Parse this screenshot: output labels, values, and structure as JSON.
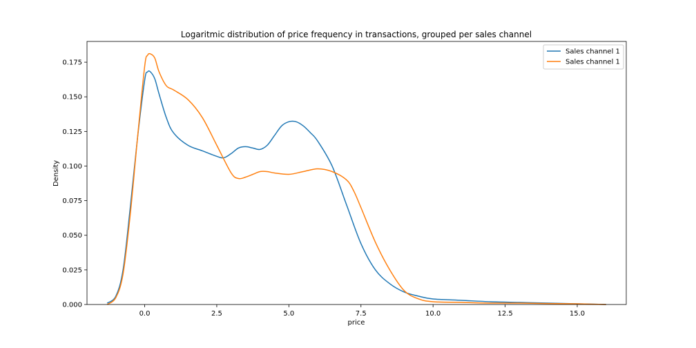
{
  "chart_data": {
    "type": "line",
    "title": "Logaritmic distribution of price frequency in transactions, grouped per sales channel",
    "xlabel": "price",
    "ylabel": "Density",
    "xlim": [
      -2.0,
      16.7
    ],
    "ylim": [
      0.0,
      0.19
    ],
    "xticks": [
      0.0,
      2.5,
      5.0,
      7.5,
      10.0,
      12.5,
      15.0
    ],
    "xtick_labels": [
      "0.0",
      "2.5",
      "5.0",
      "7.5",
      "10.0",
      "12.5",
      "15.0"
    ],
    "yticks": [
      0.0,
      0.025,
      0.05,
      0.075,
      0.1,
      0.125,
      0.15,
      0.175
    ],
    "ytick_labels": [
      "0.000",
      "0.025",
      "0.050",
      "0.075",
      "0.100",
      "0.125",
      "0.150",
      "0.175"
    ],
    "grid": false,
    "legend_position": "top-right",
    "series": [
      {
        "name": "Sales channel 1",
        "color": "#1f77b4",
        "x": [
          -1.3,
          -1.0,
          -0.75,
          -0.5,
          -0.25,
          0.0,
          0.1,
          0.2,
          0.35,
          0.5,
          0.75,
          1.0,
          1.5,
          2.0,
          2.5,
          2.75,
          3.0,
          3.25,
          3.5,
          3.75,
          4.0,
          4.25,
          4.5,
          4.75,
          5.0,
          5.25,
          5.5,
          5.75,
          6.0,
          6.5,
          7.0,
          7.5,
          8.0,
          8.5,
          9.0,
          9.5,
          10.0,
          11.0,
          12.0,
          13.0,
          14.0,
          15.0,
          16.0
        ],
        "y": [
          0.001,
          0.006,
          0.025,
          0.07,
          0.12,
          0.162,
          0.168,
          0.168,
          0.163,
          0.152,
          0.135,
          0.124,
          0.115,
          0.111,
          0.107,
          0.106,
          0.109,
          0.113,
          0.114,
          0.113,
          0.112,
          0.115,
          0.122,
          0.129,
          0.132,
          0.132,
          0.129,
          0.124,
          0.118,
          0.1,
          0.072,
          0.044,
          0.025,
          0.015,
          0.009,
          0.006,
          0.004,
          0.003,
          0.002,
          0.0015,
          0.001,
          0.0005,
          0.0
        ]
      },
      {
        "name": "Sales channel 1",
        "color": "#ff7f0e",
        "x": [
          -1.3,
          -1.0,
          -0.75,
          -0.5,
          -0.25,
          0.0,
          0.1,
          0.2,
          0.35,
          0.5,
          0.75,
          1.0,
          1.5,
          2.0,
          2.5,
          3.0,
          3.25,
          3.5,
          3.75,
          4.0,
          4.25,
          4.5,
          5.0,
          5.5,
          6.0,
          6.5,
          7.0,
          7.25,
          7.5,
          8.0,
          8.5,
          9.0,
          9.5,
          10.0,
          11.0,
          12.0,
          13.0,
          14.0,
          15.0,
          16.0
        ],
        "y": [
          0.0,
          0.005,
          0.022,
          0.065,
          0.12,
          0.172,
          0.18,
          0.181,
          0.178,
          0.168,
          0.158,
          0.155,
          0.148,
          0.135,
          0.115,
          0.095,
          0.091,
          0.092,
          0.094,
          0.096,
          0.096,
          0.095,
          0.094,
          0.096,
          0.098,
          0.096,
          0.09,
          0.082,
          0.07,
          0.045,
          0.025,
          0.01,
          0.004,
          0.002,
          0.0015,
          0.001,
          0.001,
          0.0007,
          0.0005,
          0.0
        ]
      }
    ]
  }
}
